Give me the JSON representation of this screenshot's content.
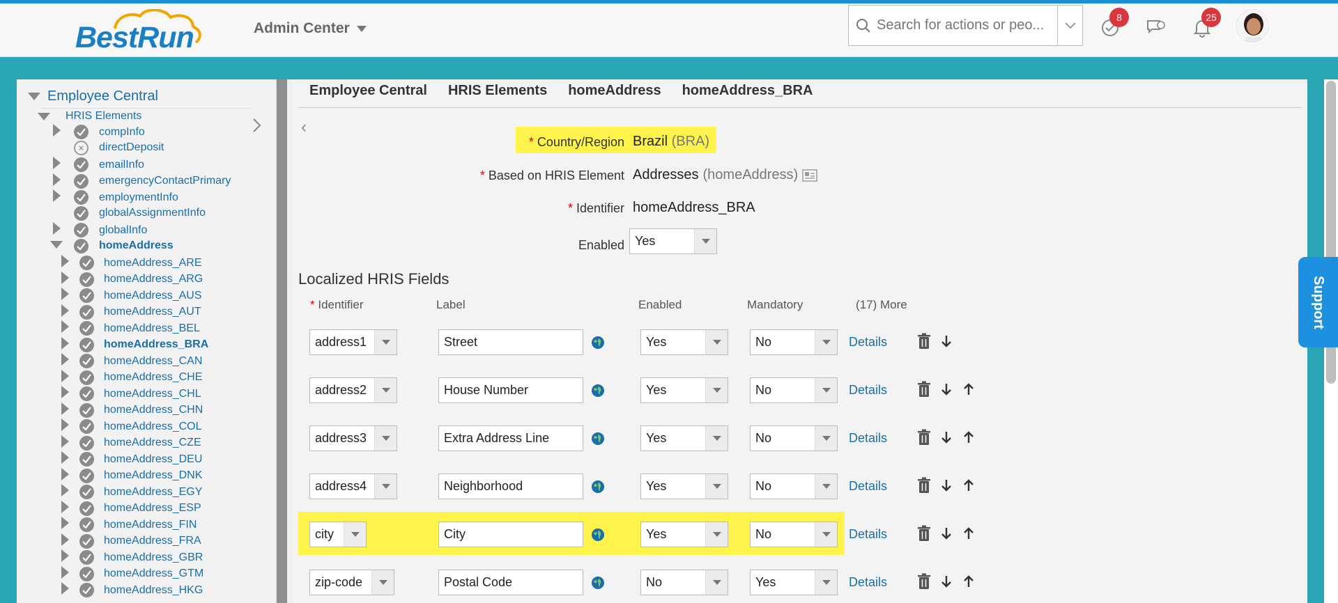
{
  "header": {
    "logo_text": "BestRun",
    "admin_center": "Admin Center",
    "search_placeholder": "Search for actions or peo...",
    "tasks_badge": "8",
    "notifications_badge": "25"
  },
  "tree": {
    "root": "Employee Central",
    "hris_elements": "HRIS Elements",
    "items": [
      {
        "label": "compInfo",
        "expander": true,
        "status": "check",
        "bold": false
      },
      {
        "label": "directDeposit",
        "expander": false,
        "status": "x",
        "bold": false
      },
      {
        "label": "emailInfo",
        "expander": true,
        "status": "check",
        "bold": false
      },
      {
        "label": "emergencyContactPrimary",
        "expander": true,
        "status": "check",
        "bold": false
      },
      {
        "label": "employmentInfo",
        "expander": true,
        "status": "check",
        "bold": false
      },
      {
        "label": "globalAssignmentInfo",
        "expander": false,
        "status": "check",
        "bold": false
      },
      {
        "label": "globalInfo",
        "expander": true,
        "status": "check",
        "bold": false
      },
      {
        "label": "homeAddress",
        "expander": "open",
        "status": "check",
        "bold": true
      }
    ],
    "children": [
      {
        "label": "homeAddress_ARE",
        "bold": false
      },
      {
        "label": "homeAddress_ARG",
        "bold": false
      },
      {
        "label": "homeAddress_AUS",
        "bold": false
      },
      {
        "label": "homeAddress_AUT",
        "bold": false
      },
      {
        "label": "homeAddress_BEL",
        "bold": false
      },
      {
        "label": "homeAddress_BRA",
        "bold": true
      },
      {
        "label": "homeAddress_CAN",
        "bold": false
      },
      {
        "label": "homeAddress_CHE",
        "bold": false
      },
      {
        "label": "homeAddress_CHL",
        "bold": false
      },
      {
        "label": "homeAddress_CHN",
        "bold": false
      },
      {
        "label": "homeAddress_COL",
        "bold": false
      },
      {
        "label": "homeAddress_CZE",
        "bold": false
      },
      {
        "label": "homeAddress_DEU",
        "bold": false
      },
      {
        "label": "homeAddress_DNK",
        "bold": false
      },
      {
        "label": "homeAddress_EGY",
        "bold": false
      },
      {
        "label": "homeAddress_ESP",
        "bold": false
      },
      {
        "label": "homeAddress_FIN",
        "bold": false
      },
      {
        "label": "homeAddress_FRA",
        "bold": false
      },
      {
        "label": "homeAddress_GBR",
        "bold": false
      },
      {
        "label": "homeAddress_GTM",
        "bold": false
      },
      {
        "label": "homeAddress_HKG",
        "bold": false
      }
    ]
  },
  "breadcrumb": [
    "Employee Central",
    "HRIS Elements",
    "homeAddress",
    "homeAddress_BRA"
  ],
  "form": {
    "country_label": "Country/Region",
    "country_value": "Brazil",
    "country_code": "(BRA)",
    "based_label": "Based on HRIS Element",
    "based_value": "Addresses",
    "based_code": "(homeAddress)",
    "identifier_label": "Identifier",
    "identifier_value": "homeAddress_BRA",
    "enabled_label": "Enabled",
    "enabled_value": "Yes"
  },
  "fields_section": {
    "title": "Localized HRIS Fields",
    "col_identifier": "Identifier",
    "col_label": "Label",
    "col_enabled": "Enabled",
    "col_mandatory": "Mandatory",
    "col_more": "(17) More",
    "details_label": "Details",
    "rows": [
      {
        "identifier": "address1",
        "label": "Street",
        "enabled": "Yes",
        "mandatory": "No",
        "highlight": false,
        "up": false
      },
      {
        "identifier": "address2",
        "label": "House Number",
        "enabled": "Yes",
        "mandatory": "No",
        "highlight": false,
        "up": true
      },
      {
        "identifier": "address3",
        "label": "Extra Address Line",
        "enabled": "Yes",
        "mandatory": "No",
        "highlight": false,
        "up": true
      },
      {
        "identifier": "address4",
        "label": "Neighborhood",
        "enabled": "Yes",
        "mandatory": "No",
        "highlight": false,
        "up": true
      },
      {
        "identifier": "city",
        "label": "City",
        "enabled": "Yes",
        "mandatory": "No",
        "highlight": true,
        "up": true
      },
      {
        "identifier": "zip-code",
        "label": "Postal Code",
        "enabled": "No",
        "mandatory": "Yes",
        "highlight": false,
        "up": true
      }
    ]
  },
  "support": "Support",
  "colors": {
    "accent": "#1a6ea8",
    "highlight": "#fdf34a",
    "brand": "#2aa5b3",
    "badge": "#d9363e"
  }
}
